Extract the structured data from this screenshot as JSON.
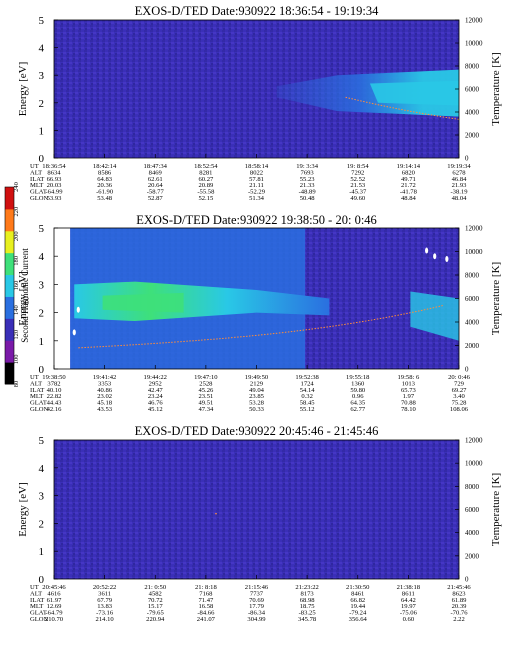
{
  "colors": {
    "background_field": "#3a2fb8",
    "band_cyan": "#29c8e6",
    "band_blue": "#2a6fe0",
    "band_green": "#3ee07a",
    "trace_orange": "#ff8c3a",
    "frame": "#000000"
  },
  "colorbar": {
    "label": "Second Harmonic Current",
    "ticks": [
      "80",
      "100",
      "120",
      "140",
      "160",
      "180",
      "200",
      "220",
      "240"
    ],
    "stops": [
      "#000000",
      "#7a1aa8",
      "#3a2fb8",
      "#2a6fe0",
      "#29c8e6",
      "#3ee07a",
      "#e8f020",
      "#ff7a1a",
      "#d01010"
    ]
  },
  "chart_data": [
    {
      "type": "heatmap",
      "title": "EXOS-D/TED  Date:930922  18:36:54 - 19:19:34",
      "ylabel": "Energy [eV]",
      "y2label": "Temperature [K]",
      "ylim": [
        0,
        5
      ],
      "y2lim": [
        0,
        12000
      ],
      "yticks": [
        "0",
        "1",
        "2",
        "3",
        "4",
        "5"
      ],
      "y2ticks": [
        "0",
        "2000",
        "4000",
        "6000",
        "8000",
        "10000",
        "12000"
      ],
      "row_labels": [
        "UT",
        "ALT",
        "ILAT",
        "MLT",
        "GLAT",
        "GLON"
      ],
      "columns": [
        [
          "18:36:54",
          "8634",
          "66.93",
          "20.03",
          "-64.99",
          "53.93"
        ],
        [
          "18:42:14",
          "8586",
          "64.83",
          "20.36",
          "-61.90",
          "53.48"
        ],
        [
          "18:47:34",
          "8469",
          "62.61",
          "20.64",
          "-58.77",
          "52.87"
        ],
        [
          "18:52:54",
          "8281",
          "60.27",
          "20.89",
          "-55.58",
          "52.15"
        ],
        [
          "18:58:14",
          "8022",
          "57.81",
          "21.11",
          "-52.29",
          "51.34"
        ],
        [
          "19: 3:34",
          "7693",
          "55.23",
          "21.33",
          "-48.89",
          "50.48"
        ],
        [
          "19: 8:54",
          "7292",
          "52.52",
          "21.53",
          "-45.37",
          "49.60"
        ],
        [
          "19:14:14",
          "6820",
          "49.71",
          "21.72",
          "-41.78",
          "48.84"
        ],
        [
          "19:19:34",
          "6278",
          "46.84",
          "21.93",
          "-38.19",
          "48.04"
        ]
      ]
    },
    {
      "type": "heatmap",
      "title": "EXOS-D/TED  Date:930922  19:38:50 - 20: 0:46",
      "ylabel": "Energy [eV]",
      "y2label": "Temperature [K]",
      "ylim": [
        0,
        5
      ],
      "y2lim": [
        0,
        12000
      ],
      "yticks": [
        "0",
        "1",
        "2",
        "3",
        "4",
        "5"
      ],
      "y2ticks": [
        "0",
        "2000",
        "4000",
        "6000",
        "8000",
        "10000",
        "12000"
      ],
      "row_labels": [
        "UT",
        "ALT",
        "ILAT",
        "MLT",
        "GLAT",
        "GLON"
      ],
      "columns": [
        [
          "19:38:50",
          "3782",
          "40.10",
          "22.82",
          "44.43",
          "42.16"
        ],
        [
          "19:41:42",
          "3353",
          "40.86",
          "23.02",
          "45.18",
          "43.53"
        ],
        [
          "19:44:22",
          "2952",
          "42.47",
          "23.24",
          "46.76",
          "45.12"
        ],
        [
          "19:47:10",
          "2528",
          "45.26",
          "23.51",
          "49.51",
          "47.34"
        ],
        [
          "19:49:50",
          "2129",
          "49.04",
          "23.85",
          "53.28",
          "50.33"
        ],
        [
          "19:52:38",
          "1724",
          "54.14",
          "0.32",
          "58.45",
          "55.12"
        ],
        [
          "19:55:18",
          "1360",
          "59.80",
          "0.96",
          "64.35",
          "62.77"
        ],
        [
          "19:58: 6",
          "1013",
          "65.73",
          "1.97",
          "70.88",
          "78.10"
        ],
        [
          "20: 0:46",
          "729",
          "69.27",
          "3.40",
          "75.28",
          "108.06"
        ]
      ]
    },
    {
      "type": "heatmap",
      "title": "EXOS-D/TED  Date:930922  20:45:46 - 21:45:46",
      "ylabel": "Energy [eV]",
      "y2label": "Temperature [K]",
      "ylim": [
        0,
        5
      ],
      "y2lim": [
        0,
        12000
      ],
      "yticks": [
        "0",
        "1",
        "2",
        "3",
        "4",
        "5"
      ],
      "y2ticks": [
        "0",
        "2000",
        "4000",
        "6000",
        "8000",
        "10000",
        "12000"
      ],
      "row_labels": [
        "UT",
        "ALT",
        "ILAT",
        "MLT",
        "GLAT",
        "GLON"
      ],
      "columns": [
        [
          "20:45:46",
          "4616",
          "61.97",
          "12.69",
          "-64.79",
          "210.70"
        ],
        [
          "20:52:22",
          "3611",
          "67.79",
          "13.83",
          "-73.16",
          "214.10"
        ],
        [
          "21: 0:50",
          "4582",
          "70.72",
          "15.17",
          "-79.65",
          "220.94"
        ],
        [
          "21: 8:18",
          "7168",
          "71.47",
          "16.58",
          "-84.66",
          "241.07"
        ],
        [
          "21:15:46",
          "7737",
          "70.69",
          "17.79",
          "-86.34",
          "304.99"
        ],
        [
          "21:23:22",
          "8173",
          "68.98",
          "18.75",
          "-83.25",
          "345.78"
        ],
        [
          "21:30:50",
          "8461",
          "66.82",
          "19.44",
          "-79.24",
          "356.64"
        ],
        [
          "21:38:18",
          "8611",
          "64.42",
          "19.97",
          "-75.06",
          "0.60"
        ],
        [
          "21:45:46",
          "8623",
          "61.89",
          "20.39",
          "-70.76",
          "2.22"
        ]
      ]
    }
  ]
}
